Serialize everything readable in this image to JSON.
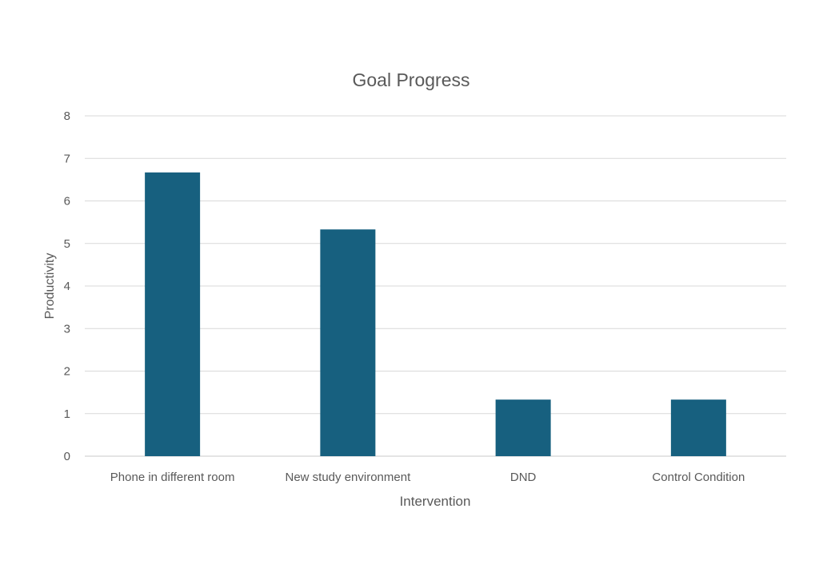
{
  "colors": {
    "bar": "#17607F",
    "grid": "#D9D9D9",
    "axis": "#C8C8C8",
    "text": "#595959"
  },
  "chart_data": {
    "type": "bar",
    "title": "Goal Progress",
    "xlabel": "Intervention",
    "ylabel": "Productivity",
    "categories": [
      "Phone in different room",
      "New study environment",
      "DND",
      "Control Condition"
    ],
    "values": [
      6.67,
      5.33,
      1.33,
      1.33
    ],
    "ylim": [
      0,
      8
    ],
    "yticks": [
      "0",
      "1",
      "2",
      "3",
      "4",
      "5",
      "6",
      "7",
      "8"
    ],
    "grid": true,
    "legend": "none"
  }
}
